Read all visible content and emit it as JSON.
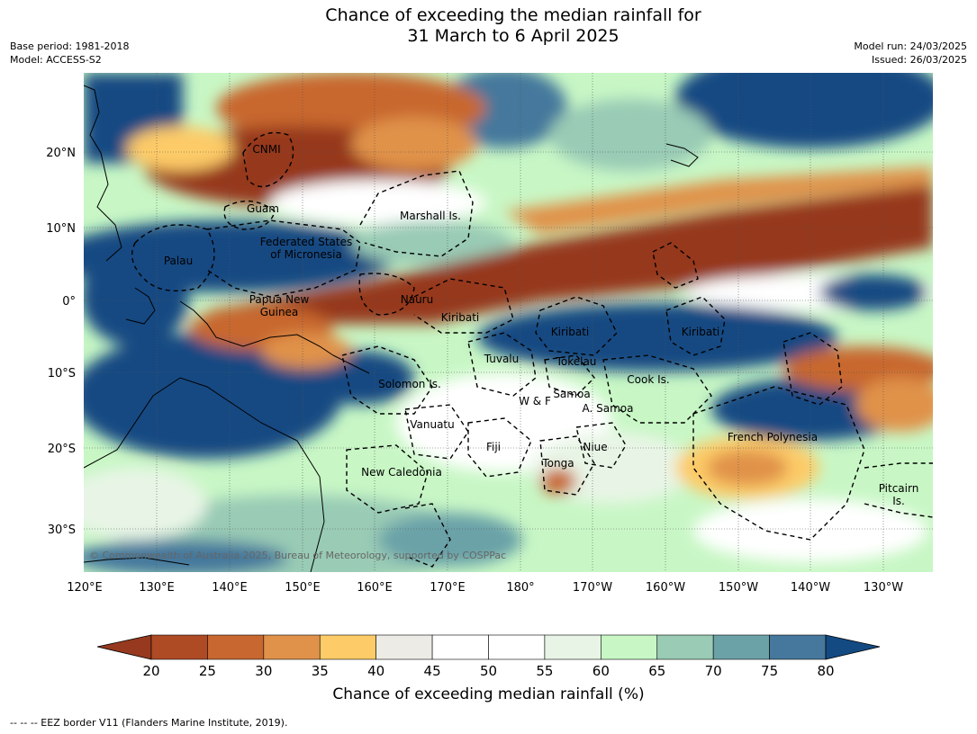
{
  "title": {
    "line1": "Chance of exceeding the median rainfall for",
    "line2": "31 March to 6 April 2025"
  },
  "meta_left": {
    "base_period": "Base period: 1981-2018",
    "model": "Model: ACCESS-S2"
  },
  "meta_right": {
    "model_run": "Model run: 24/03/2025",
    "issued": "Issued: 26/03/2025"
  },
  "lat_labels": [
    "20°N",
    "10°N",
    "0°",
    "10°S",
    "20°S",
    "30°S"
  ],
  "lon_labels": [
    "120°E",
    "130°E",
    "140°E",
    "150°E",
    "160°E",
    "170°E",
    "180°",
    "170°W",
    "160°W",
    "150°W",
    "140°W",
    "130°W"
  ],
  "places": [
    {
      "name": "CNMI"
    },
    {
      "name": "Guam"
    },
    {
      "name": "Marshall Is."
    },
    {
      "name": "Federated States"
    },
    {
      "name": "of Micronesia"
    },
    {
      "name": "Palau"
    },
    {
      "name": "Papua New"
    },
    {
      "name": "Guinea"
    },
    {
      "name": "Nauru"
    },
    {
      "name": "Kiribati"
    },
    {
      "name": "Kiribati"
    },
    {
      "name": "Kiribati"
    },
    {
      "name": "Tuvalu"
    },
    {
      "name": "Tokelau"
    },
    {
      "name": "Cook Is."
    },
    {
      "name": "Solomon Is."
    },
    {
      "name": "Samoa"
    },
    {
      "name": "W & F"
    },
    {
      "name": "A. Samoa"
    },
    {
      "name": "Vanuatu"
    },
    {
      "name": "Fiji"
    },
    {
      "name": "Niue"
    },
    {
      "name": "Tonga"
    },
    {
      "name": "New Caledonia"
    },
    {
      "name": "French Polynesia"
    },
    {
      "name": "Pitcairn"
    },
    {
      "name": "Is."
    }
  ],
  "copyright": "© Commonwealth of Australia 2025, Bureau of Meteorology, supported by COSPPac",
  "colorbar": {
    "ticks": [
      "20",
      "25",
      "30",
      "35",
      "40",
      "45",
      "50",
      "55",
      "60",
      "65",
      "70",
      "75",
      "80"
    ],
    "colors": [
      "#ae4a24",
      "#c8672f",
      "#e0924a",
      "#fdcb68",
      "#ecebe6",
      "#ffffff",
      "#ffffff",
      "#e8f5e6",
      "#c8f7c5",
      "#99cbb5",
      "#6ba2a8",
      "#45789c"
    ],
    "under_color": "#96391f",
    "over_color": "#134a82",
    "label": "Chance of exceeding median rainfall (%)"
  },
  "footnote": "--  --  -- EEZ border V11 (Flanders Marine Institute, 2019)."
}
